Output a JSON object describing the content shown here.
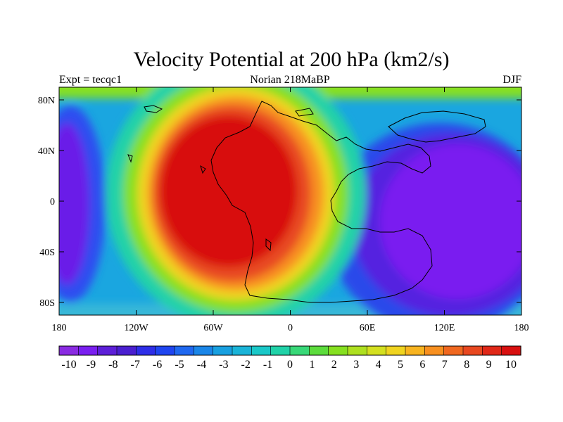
{
  "title": "Velocity Potential at 200 hPa (km2/s)",
  "left_subtitle": "Expt = tecqc1",
  "center_subtitle": "Norian 218MaBP",
  "right_subtitle": "DJF",
  "y_ticks": [
    {
      "label": "80N",
      "lat": 80
    },
    {
      "label": "40N",
      "lat": 40
    },
    {
      "label": "0",
      "lat": 0
    },
    {
      "label": "40S",
      "lat": -40
    },
    {
      "label": "80S",
      "lat": -80
    }
  ],
  "x_ticks": [
    {
      "label": "180",
      "lon": -180
    },
    {
      "label": "120W",
      "lon": -120
    },
    {
      "label": "60W",
      "lon": -60
    },
    {
      "label": "0",
      "lon": 0
    },
    {
      "label": "60E",
      "lon": 60
    },
    {
      "label": "120E",
      "lon": 120
    },
    {
      "label": "180",
      "lon": 180
    }
  ],
  "colorbar_labels": [
    "-10",
    "-9",
    "-8",
    "-7",
    "-6",
    "-5",
    "-4",
    "-3",
    "-2",
    "-1",
    "0",
    "1",
    "2",
    "3",
    "4",
    "5",
    "6",
    "7",
    "8",
    "9",
    "10"
  ],
  "colorbar_colors": [
    "#8a2be2",
    "#7a1ff0",
    "#5d1fd8",
    "#4a1fd0",
    "#2e2ee8",
    "#1f45f0",
    "#1f68f0",
    "#1a86e8",
    "#18a0e0",
    "#1ab4d8",
    "#1ac8c8",
    "#20d2a8",
    "#38d878",
    "#5cdc3c",
    "#86e020",
    "#aee020",
    "#d4e020",
    "#f0d420",
    "#f8b420",
    "#f89020",
    "#f06820",
    "#e84820",
    "#e02818",
    "#d81010"
  ],
  "chart_data": {
    "type": "heatmap",
    "title": "Velocity Potential at 200 hPa (km2/s)",
    "units": "km2/s",
    "level": "200 hPa",
    "season": "DJF",
    "experiment": "tecqc1",
    "period": "Norian 218MaBP",
    "x_range": [
      -180,
      180
    ],
    "y_range": [
      -90,
      90
    ],
    "scale_range": [
      -10,
      10
    ],
    "features": [
      {
        "desc": "maximum",
        "lon": -25,
        "lat": 10,
        "value": 10
      },
      {
        "desc": "minimum",
        "lon": 130,
        "lat": -20,
        "value": -10
      },
      {
        "desc": "minimum",
        "lon": -170,
        "lat": 0,
        "value": -10
      }
    ]
  }
}
